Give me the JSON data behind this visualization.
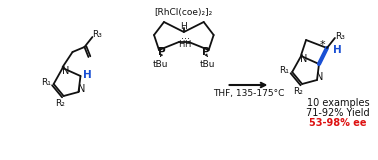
{
  "bg_color": "#ffffff",
  "black": "#111111",
  "blue": "#1a50d4",
  "red": "#dd1111",
  "figsize": [
    3.78,
    1.6
  ],
  "dpi": 100,
  "catalyst_label": "[RhCl(coe)₂]₂",
  "conditions": "THF, 135-175°C",
  "examples": "10 examples",
  "yield_text": "71-92% Yield",
  "ee_text": "53-98% ee"
}
